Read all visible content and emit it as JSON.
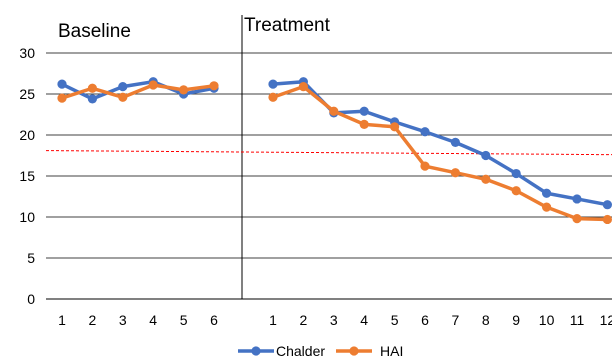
{
  "chart_data": {
    "type": "line",
    "phases": [
      {
        "title": "Baseline",
        "x": [
          1,
          2,
          3,
          4,
          5,
          6
        ]
      },
      {
        "title": "Treatment",
        "x": [
          1,
          2,
          3,
          4,
          5,
          6,
          7,
          8,
          9,
          10,
          11,
          12
        ]
      }
    ],
    "ylim": [
      0,
      30
    ],
    "yticks": [
      0,
      5,
      10,
      15,
      20,
      25,
      30
    ],
    "grid": true,
    "legend": "bottom",
    "series": [
      {
        "name": "Chalder",
        "color": "#4472c4",
        "baseline": [
          26.2,
          24.4,
          25.9,
          26.5,
          25.0,
          25.7
        ],
        "treatment": [
          26.2,
          26.5,
          22.7,
          22.9,
          21.6,
          20.4,
          19.1,
          17.5,
          15.3,
          12.9,
          12.2,
          11.5
        ]
      },
      {
        "name": "HAI",
        "color": "#ed7d31",
        "baseline": [
          24.5,
          25.7,
          24.6,
          26.1,
          25.5,
          26.0
        ],
        "treatment": [
          24.6,
          25.9,
          22.9,
          21.3,
          21.0,
          16.2,
          15.4,
          14.6,
          13.2,
          11.2,
          9.8,
          9.7
        ]
      }
    ],
    "reference_line": {
      "y_start": 18.1,
      "y_end": 17.6,
      "color": "#ff0000",
      "style": "dashed"
    }
  }
}
